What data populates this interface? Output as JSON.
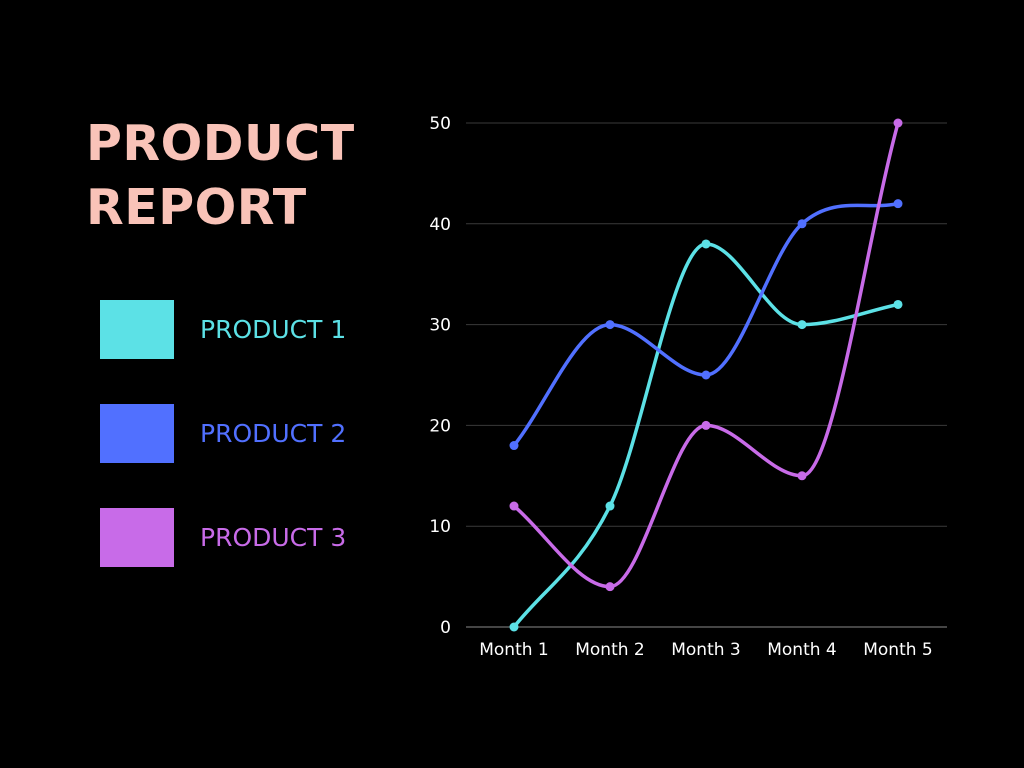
{
  "title": {
    "line1": "PRODUCT",
    "line2": "REPORT"
  },
  "legend": [
    {
      "label": "PRODUCT 1",
      "color": "#5ce1e6"
    },
    {
      "label": "PRODUCT 2",
      "color": "#5170ff"
    },
    {
      "label": "PRODUCT 3",
      "color": "#c86be8"
    }
  ],
  "chart_data": {
    "type": "line",
    "title": "",
    "xlabel": "",
    "ylabel": "",
    "categories": [
      "Month 1",
      "Month 2",
      "Month 3",
      "Month 4",
      "Month 5"
    ],
    "ylim": [
      0,
      50
    ],
    "yticks": [
      0,
      10,
      20,
      30,
      40,
      50
    ],
    "grid": true,
    "legend_position": "left",
    "smooth": true,
    "series": [
      {
        "name": "PRODUCT 1",
        "color": "#5ce1e6",
        "values": [
          0,
          12,
          38,
          30,
          32
        ]
      },
      {
        "name": "PRODUCT 2",
        "color": "#5170ff",
        "values": [
          18,
          30,
          25,
          40,
          42
        ]
      },
      {
        "name": "PRODUCT 3",
        "color": "#c86be8",
        "values": [
          12,
          4,
          20,
          15,
          50
        ]
      }
    ]
  }
}
